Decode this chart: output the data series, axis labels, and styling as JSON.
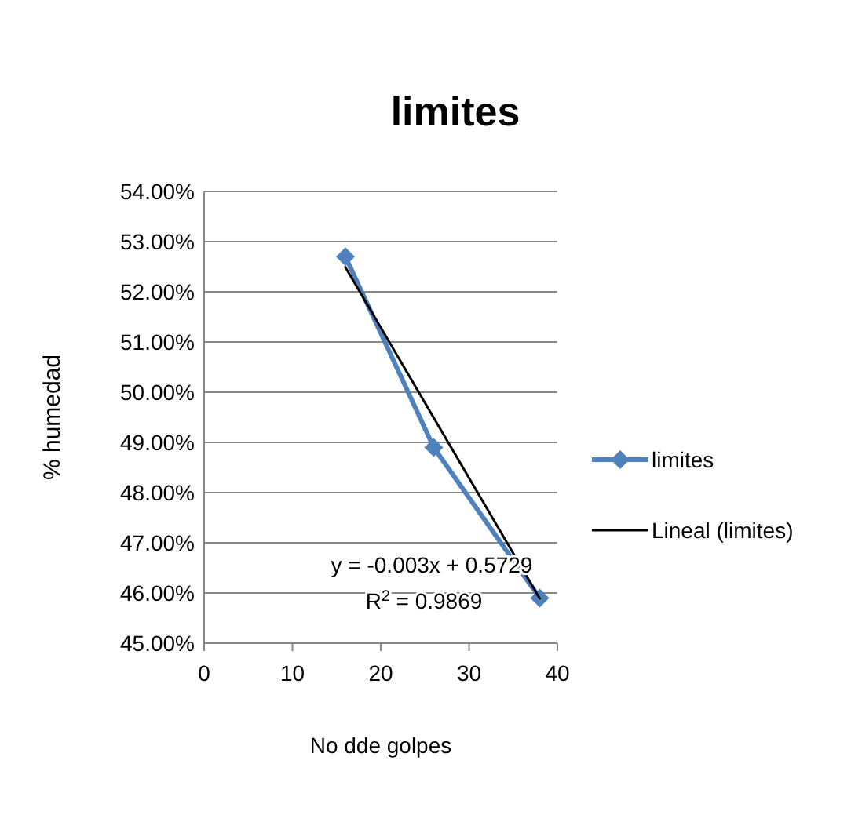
{
  "chart_data": {
    "type": "line",
    "title": "limites",
    "xlabel": "No dde golpes",
    "ylabel": "% humedad",
    "xlim": [
      0,
      40
    ],
    "xticks": [
      0,
      10,
      20,
      30,
      40
    ],
    "ylim": [
      0.45,
      0.54
    ],
    "yticks": [
      {
        "value": 0.45,
        "label": "45.00%"
      },
      {
        "value": 0.46,
        "label": "46.00%"
      },
      {
        "value": 0.47,
        "label": "47.00%"
      },
      {
        "value": 0.48,
        "label": "48.00%"
      },
      {
        "value": 0.49,
        "label": "49.00%"
      },
      {
        "value": 0.5,
        "label": "50.00%"
      },
      {
        "value": 0.51,
        "label": "51.00%"
      },
      {
        "value": 0.52,
        "label": "52.00%"
      },
      {
        "value": 0.53,
        "label": "53.00%"
      },
      {
        "value": 0.54,
        "label": "54.00%"
      }
    ],
    "grid": "y",
    "legend": "right",
    "series": [
      {
        "name": "limites",
        "color": "#4f81bd",
        "x": [
          16,
          26,
          38
        ],
        "values": [
          0.527,
          0.489,
          0.459
        ],
        "marker": "diamond"
      },
      {
        "name": "Lineal (limites)",
        "color": "#000000",
        "type": "line",
        "x": [
          16,
          38
        ],
        "values": [
          0.5249,
          0.4589
        ],
        "marker": "none"
      }
    ],
    "annotations": [
      "y = -0.003x + 0.5729",
      "R$^{2}$ = 0.9869"
    ]
  }
}
